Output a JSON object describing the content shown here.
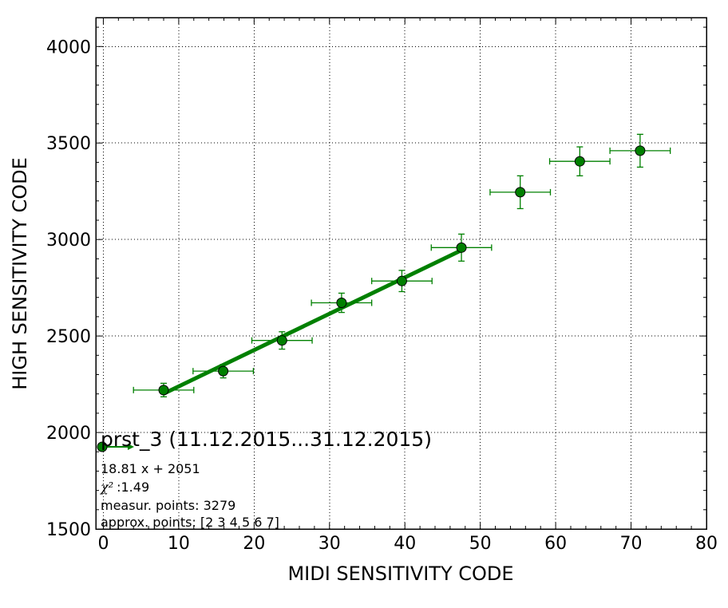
{
  "chart_data": {
    "type": "scatter",
    "xlabel": "MIDI SENSITIVITY CODE",
    "ylabel": "HIGH SENSITIVITY CODE",
    "xlim": [
      -1,
      80
    ],
    "ylim": [
      1500,
      4150
    ],
    "xticks": [
      0,
      10,
      20,
      30,
      40,
      50,
      60,
      70,
      80
    ],
    "yticks": [
      1500,
      2000,
      2500,
      3000,
      3500,
      4000
    ],
    "x_minor_step": 2,
    "y_minor_step": 100,
    "grid": true,
    "grid_style": "dotted",
    "color": "#008000",
    "points": [
      {
        "x": 8.0,
        "y": 2220,
        "xerr": 4,
        "yerr": 35
      },
      {
        "x": 15.9,
        "y": 2318,
        "xerr": 4,
        "yerr": 35
      },
      {
        "x": 23.7,
        "y": 2477,
        "xerr": 4,
        "yerr": 45
      },
      {
        "x": 31.6,
        "y": 2672,
        "xerr": 4,
        "yerr": 50
      },
      {
        "x": 39.6,
        "y": 2785,
        "xerr": 4,
        "yerr": 55
      },
      {
        "x": 47.5,
        "y": 2958,
        "xerr": 4,
        "yerr": 70
      },
      {
        "x": 55.3,
        "y": 3245,
        "xerr": 4,
        "yerr": 85
      },
      {
        "x": 63.2,
        "y": 3405,
        "xerr": 4,
        "yerr": 75
      },
      {
        "x": 71.2,
        "y": 3460,
        "xerr": 4,
        "yerr": 85
      }
    ],
    "fit": {
      "slope": 18.81,
      "intercept": 2051,
      "x_range": [
        8.0,
        47.5
      ]
    },
    "legend": {
      "title": "prst_3 (11.12.2015...31.12.2015)",
      "equation": "18.81 x + 2051",
      "chi2_symbol": "χ²",
      "chi2_value": ":1.49",
      "measur_points": "measur. points: 3279",
      "approx_points": "approx. points: [2 3 4 5 6 7]"
    }
  }
}
